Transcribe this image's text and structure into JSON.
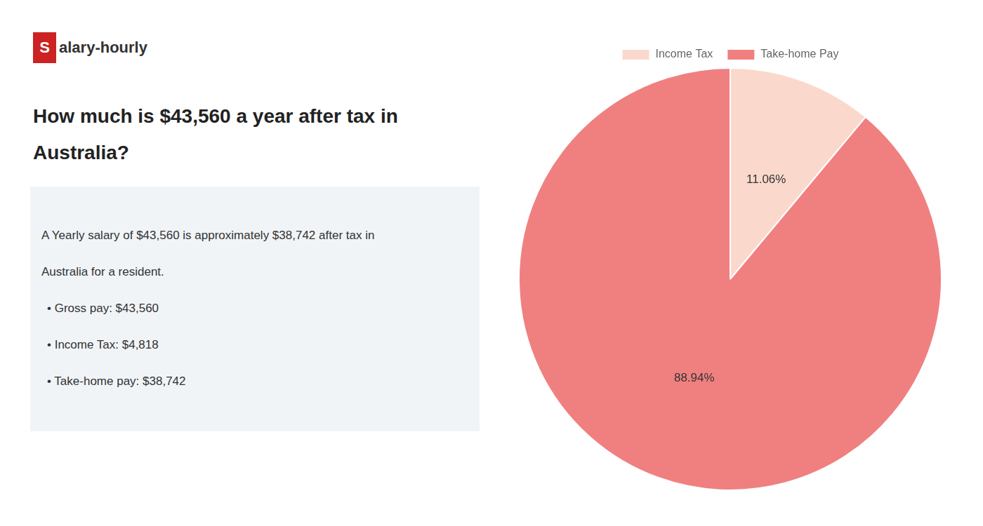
{
  "chart_data": {
    "type": "pie",
    "title": [
      "How much is $43,560 a year after tax in",
      "Australia?"
    ],
    "annotations": [
      "Salary-hourly",
      "A Yearly salary of $43,560 is approximately $38,742 after tax in",
      "Australia for a resident.",
      "• Gross pay: $43,560",
      "• Income Tax: $4,818",
      "• Take-home pay: $38,742"
    ],
    "categories": [
      "Income Tax",
      "Take-home Pay"
    ],
    "values": [
      11.06,
      88.94
    ],
    "value_labels": [
      "11.06%",
      "88.94%"
    ],
    "colors": [
      "#fad9cc",
      "#f08080"
    ],
    "data_labels": true,
    "legend": "top"
  }
}
